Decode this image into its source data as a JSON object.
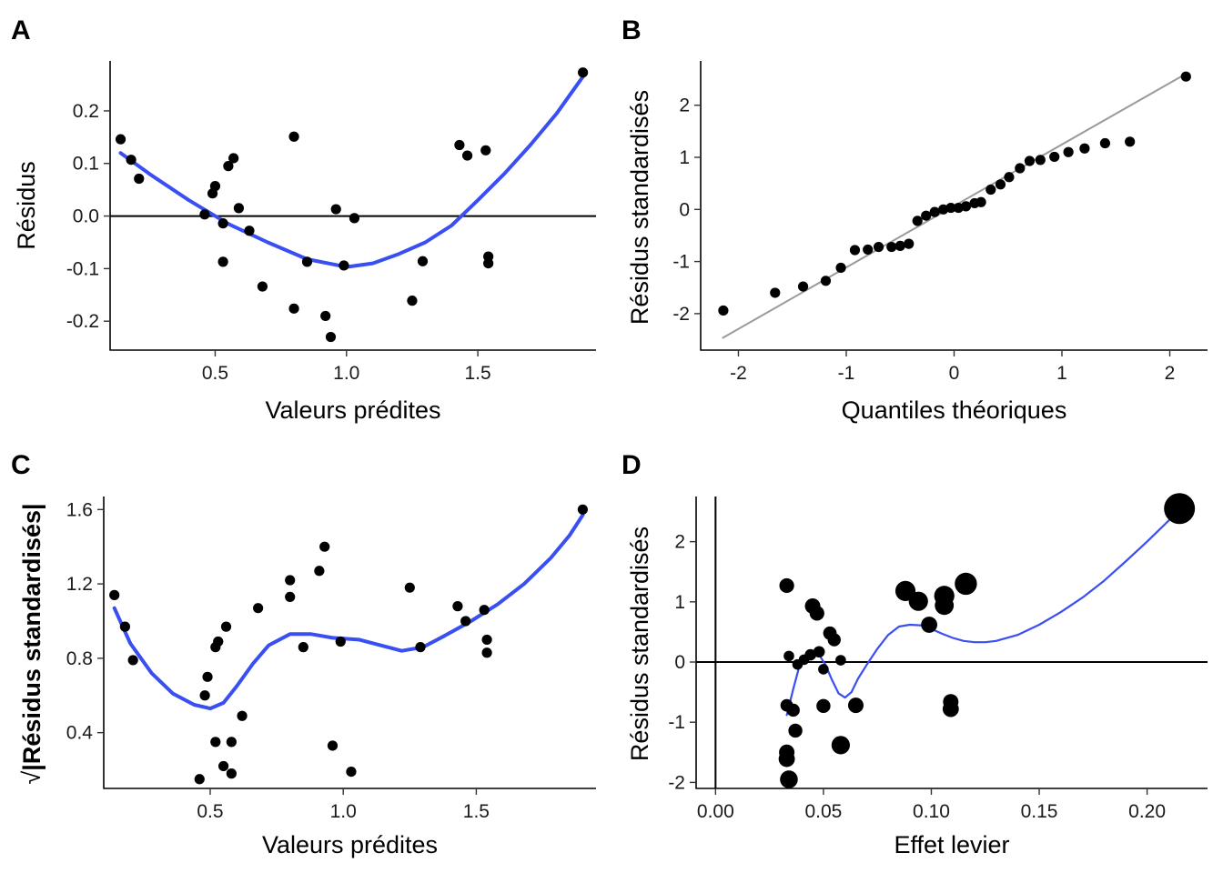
{
  "colors": {
    "smooth": "#3A4FF2",
    "point": "#000000",
    "qqline": "#9A9A9A"
  },
  "chart_data": [
    {
      "id": "A",
      "type": "scatter",
      "label": "A",
      "xlabel": "Valeurs prédites",
      "ylabel": "Résidus",
      "xlim": [
        0.1,
        1.95
      ],
      "ylim": [
        -0.255,
        0.295
      ],
      "xticks": [
        0.5,
        1.0,
        1.5
      ],
      "xtick_labels": [
        "0.5",
        "1.0",
        "1.5"
      ],
      "yticks": [
        -0.2,
        -0.1,
        0.0,
        0.1,
        0.2
      ],
      "ytick_labels": [
        "-0.2",
        "-0.1",
        "0.0",
        "0.1",
        "0.2"
      ],
      "hline": 0,
      "points": [
        [
          0.14,
          0.146
        ],
        [
          0.18,
          0.107
        ],
        [
          0.21,
          0.071
        ],
        [
          0.46,
          0.003
        ],
        [
          0.49,
          0.043
        ],
        [
          0.5,
          0.057
        ],
        [
          0.53,
          -0.014
        ],
        [
          0.53,
          -0.087
        ],
        [
          0.55,
          0.095
        ],
        [
          0.57,
          0.11
        ],
        [
          0.59,
          0.015
        ],
        [
          0.63,
          -0.028
        ],
        [
          0.68,
          -0.134
        ],
        [
          0.8,
          0.151
        ],
        [
          0.8,
          -0.176
        ],
        [
          0.85,
          -0.087
        ],
        [
          0.92,
          -0.19
        ],
        [
          0.94,
          -0.23
        ],
        [
          0.96,
          0.013
        ],
        [
          0.99,
          -0.094
        ],
        [
          1.03,
          -0.004
        ],
        [
          1.25,
          -0.161
        ],
        [
          1.29,
          -0.086
        ],
        [
          1.43,
          0.135
        ],
        [
          1.46,
          0.115
        ],
        [
          1.53,
          0.125
        ],
        [
          1.54,
          -0.077
        ],
        [
          1.54,
          -0.09
        ],
        [
          1.9,
          0.273
        ]
      ],
      "smooth": [
        [
          0.14,
          0.12
        ],
        [
          0.25,
          0.08
        ],
        [
          0.4,
          0.03
        ],
        [
          0.55,
          -0.015
        ],
        [
          0.7,
          -0.05
        ],
        [
          0.85,
          -0.082
        ],
        [
          1.0,
          -0.097
        ],
        [
          1.1,
          -0.09
        ],
        [
          1.2,
          -0.072
        ],
        [
          1.3,
          -0.05
        ],
        [
          1.4,
          -0.018
        ],
        [
          1.5,
          0.03
        ],
        [
          1.6,
          0.08
        ],
        [
          1.7,
          0.135
        ],
        [
          1.8,
          0.195
        ],
        [
          1.9,
          0.265
        ]
      ]
    },
    {
      "id": "B",
      "type": "scatter",
      "label": "B",
      "xlabel": "Quantiles théoriques",
      "ylabel": "Résidus standardisés",
      "xlim": [
        -2.35,
        2.35
      ],
      "ylim": [
        -2.7,
        2.85
      ],
      "xticks": [
        -2,
        -1,
        0,
        1,
        2
      ],
      "xtick_labels": [
        "-2",
        "-1",
        "0",
        "1",
        "2"
      ],
      "yticks": [
        -2,
        -1,
        0,
        1,
        2
      ],
      "ytick_labels": [
        "-2",
        "-1",
        "0",
        "1",
        "2"
      ],
      "qqline": [
        [
          -2.15,
          -2.47
        ],
        [
          2.13,
          2.58
        ]
      ],
      "points": [
        [
          -2.14,
          -1.94
        ],
        [
          -1.66,
          -1.6
        ],
        [
          -1.4,
          -1.48
        ],
        [
          -1.19,
          -1.37
        ],
        [
          -1.05,
          -1.12
        ],
        [
          -0.92,
          -0.78
        ],
        [
          -0.8,
          -0.77
        ],
        [
          -0.7,
          -0.72
        ],
        [
          -0.58,
          -0.72
        ],
        [
          -0.5,
          -0.7
        ],
        [
          -0.42,
          -0.66
        ],
        [
          -0.34,
          -0.22
        ],
        [
          -0.26,
          -0.12
        ],
        [
          -0.18,
          -0.05
        ],
        [
          -0.1,
          0.0
        ],
        [
          -0.03,
          0.03
        ],
        [
          0.04,
          0.03
        ],
        [
          0.11,
          0.06
        ],
        [
          0.19,
          0.12
        ],
        [
          0.25,
          0.14
        ],
        [
          0.34,
          0.38
        ],
        [
          0.43,
          0.48
        ],
        [
          0.51,
          0.62
        ],
        [
          0.61,
          0.79
        ],
        [
          0.7,
          0.93
        ],
        [
          0.8,
          0.95
        ],
        [
          0.93,
          1.01
        ],
        [
          1.06,
          1.1
        ],
        [
          1.21,
          1.17
        ],
        [
          1.4,
          1.27
        ],
        [
          1.63,
          1.3
        ],
        [
          2.15,
          2.55
        ]
      ]
    },
    {
      "id": "C",
      "type": "scatter",
      "label": "C",
      "xlabel": "Valeurs prédites",
      "ylabel": "|Résidus standardisés|",
      "ylabel_prefix": "√",
      "xlim": [
        0.1,
        1.95
      ],
      "ylim": [
        0.1,
        1.67
      ],
      "xticks": [
        0.5,
        1.0,
        1.5
      ],
      "xtick_labels": [
        "0.5",
        "1.0",
        "1.5"
      ],
      "yticks": [
        0.4,
        0.8,
        1.2,
        1.6
      ],
      "ytick_labels": [
        "0.4",
        "0.8",
        "1.2",
        "1.6"
      ],
      "points": [
        [
          0.14,
          1.14
        ],
        [
          0.18,
          0.97
        ],
        [
          0.21,
          0.79
        ],
        [
          0.46,
          0.15
        ],
        [
          0.48,
          0.6
        ],
        [
          0.49,
          0.7
        ],
        [
          0.52,
          0.35
        ],
        [
          0.52,
          0.86
        ],
        [
          0.53,
          0.89
        ],
        [
          0.55,
          0.22
        ],
        [
          0.56,
          0.97
        ],
        [
          0.58,
          0.18
        ],
        [
          0.58,
          0.35
        ],
        [
          0.62,
          0.49
        ],
        [
          0.68,
          1.07
        ],
        [
          0.8,
          1.22
        ],
        [
          0.8,
          1.13
        ],
        [
          0.85,
          0.86
        ],
        [
          0.91,
          1.27
        ],
        [
          0.93,
          1.4
        ],
        [
          0.96,
          0.33
        ],
        [
          0.99,
          0.89
        ],
        [
          1.03,
          0.19
        ],
        [
          1.25,
          1.18
        ],
        [
          1.29,
          0.86
        ],
        [
          1.43,
          1.08
        ],
        [
          1.46,
          1.0
        ],
        [
          1.53,
          1.06
        ],
        [
          1.54,
          0.9
        ],
        [
          1.54,
          0.83
        ],
        [
          1.9,
          1.6
        ]
      ],
      "smooth": [
        [
          0.14,
          1.07
        ],
        [
          0.2,
          0.88
        ],
        [
          0.28,
          0.72
        ],
        [
          0.36,
          0.61
        ],
        [
          0.44,
          0.55
        ],
        [
          0.5,
          0.53
        ],
        [
          0.55,
          0.56
        ],
        [
          0.6,
          0.65
        ],
        [
          0.66,
          0.77
        ],
        [
          0.72,
          0.87
        ],
        [
          0.8,
          0.93
        ],
        [
          0.88,
          0.93
        ],
        [
          0.96,
          0.91
        ],
        [
          1.06,
          0.9
        ],
        [
          1.14,
          0.87
        ],
        [
          1.22,
          0.84
        ],
        [
          1.3,
          0.86
        ],
        [
          1.38,
          0.92
        ],
        [
          1.48,
          1.0
        ],
        [
          1.58,
          1.09
        ],
        [
          1.68,
          1.2
        ],
        [
          1.78,
          1.34
        ],
        [
          1.85,
          1.46
        ],
        [
          1.9,
          1.57
        ]
      ]
    },
    {
      "id": "D",
      "type": "scatter",
      "label": "D",
      "xlabel": "Effet levier",
      "ylabel": "Résidus standardisés",
      "xlim": [
        -0.009,
        0.228
      ],
      "ylim": [
        -2.1,
        2.75
      ],
      "xticks": [
        0.0,
        0.05,
        0.1,
        0.15,
        0.2
      ],
      "xtick_labels": [
        "0.00",
        "0.05",
        "0.10",
        "0.15",
        "0.20"
      ],
      "yticks": [
        -2,
        -1,
        0,
        1,
        2
      ],
      "ytick_labels": [
        "-2",
        "-1",
        "0",
        "1",
        "2"
      ],
      "hline": 0,
      "vline": 0,
      "points": [
        [
          0.033,
          1.27,
          0.1
        ],
        [
          0.034,
          0.1,
          0.02
        ],
        [
          0.033,
          -0.72,
          0.05
        ],
        [
          0.036,
          -0.8,
          0.06
        ],
        [
          0.037,
          -1.14,
          0.08
        ],
        [
          0.033,
          -1.5,
          0.12
        ],
        [
          0.033,
          -1.61,
          0.14
        ],
        [
          0.034,
          -1.95,
          0.2
        ],
        [
          0.038,
          -0.04,
          0.02
        ],
        [
          0.041,
          0.04,
          0.02
        ],
        [
          0.044,
          0.12,
          0.03
        ],
        [
          0.045,
          0.93,
          0.12
        ],
        [
          0.047,
          0.81,
          0.1
        ],
        [
          0.048,
          0.17,
          0.03
        ],
        [
          0.05,
          -0.12,
          0.02
        ],
        [
          0.05,
          -0.73,
          0.08
        ],
        [
          0.053,
          0.48,
          0.07
        ],
        [
          0.055,
          0.37,
          0.06
        ],
        [
          0.058,
          0.03,
          0.02
        ],
        [
          0.058,
          -1.38,
          0.22
        ],
        [
          0.065,
          -0.72,
          0.12
        ],
        [
          0.088,
          1.18,
          0.3
        ],
        [
          0.094,
          1.01,
          0.26
        ],
        [
          0.099,
          0.62,
          0.14
        ],
        [
          0.106,
          1.1,
          0.3
        ],
        [
          0.106,
          0.94,
          0.24
        ],
        [
          0.109,
          -0.66,
          0.12
        ],
        [
          0.109,
          -0.78,
          0.14
        ],
        [
          0.116,
          1.3,
          0.4
        ],
        [
          0.215,
          2.55,
          1.0
        ]
      ],
      "smooth": [
        [
          0.033,
          -0.88
        ],
        [
          0.036,
          -0.45
        ],
        [
          0.039,
          -0.05
        ],
        [
          0.042,
          0.11
        ],
        [
          0.045,
          0.15
        ],
        [
          0.048,
          0.12
        ],
        [
          0.051,
          -0.05
        ],
        [
          0.054,
          -0.3
        ],
        [
          0.057,
          -0.52
        ],
        [
          0.06,
          -0.59
        ],
        [
          0.063,
          -0.5
        ],
        [
          0.066,
          -0.28
        ],
        [
          0.07,
          -0.05
        ],
        [
          0.075,
          0.22
        ],
        [
          0.08,
          0.45
        ],
        [
          0.085,
          0.59
        ],
        [
          0.09,
          0.62
        ],
        [
          0.095,
          0.61
        ],
        [
          0.1,
          0.55
        ],
        [
          0.105,
          0.47
        ],
        [
          0.11,
          0.4
        ],
        [
          0.115,
          0.35
        ],
        [
          0.12,
          0.33
        ],
        [
          0.125,
          0.33
        ],
        [
          0.13,
          0.35
        ],
        [
          0.14,
          0.45
        ],
        [
          0.15,
          0.62
        ],
        [
          0.16,
          0.83
        ],
        [
          0.17,
          1.07
        ],
        [
          0.18,
          1.35
        ],
        [
          0.19,
          1.67
        ],
        [
          0.2,
          2.0
        ],
        [
          0.21,
          2.35
        ],
        [
          0.215,
          2.52
        ]
      ]
    }
  ]
}
